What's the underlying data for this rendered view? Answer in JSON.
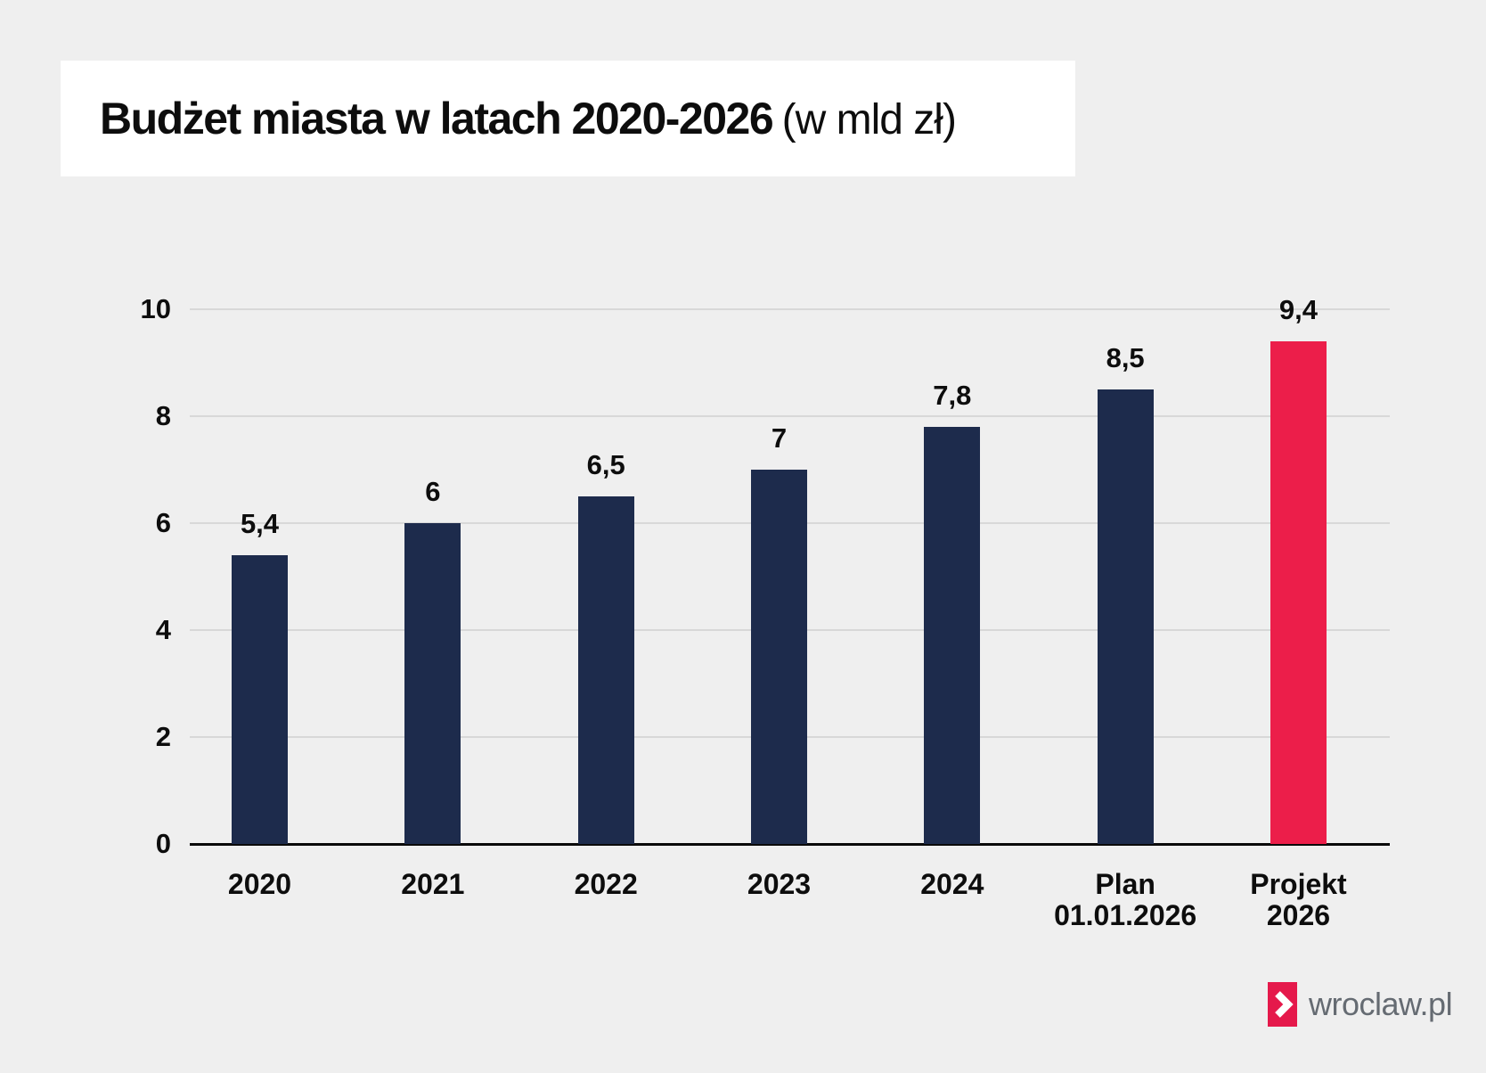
{
  "title": {
    "main": "Budżet miasta w latach 2020-2026",
    "unit": "(w mld zł)"
  },
  "chart_data": {
    "type": "bar",
    "title": "Budżet miasta w latach 2020-2026 (w mld zł)",
    "categories": [
      "2020",
      "2021",
      "2022",
      "2023",
      "2024",
      "Plan\n01.01.2026",
      "Projekt\n2026"
    ],
    "values": [
      5.4,
      6,
      6.5,
      7,
      7.8,
      8.5,
      9.4
    ],
    "value_labels": [
      "5,4",
      "6",
      "6,5",
      "7",
      "7,8",
      "8,5",
      "9,4"
    ],
    "xlabel": "",
    "ylabel": "",
    "ylim": [
      0,
      10
    ],
    "yticks": [
      0,
      2,
      4,
      6,
      8,
      10
    ],
    "grid": true,
    "legend": false,
    "bar_color": "#1d2b4c",
    "highlight_color": "#ec1e4a",
    "highlight_index": 6,
    "background_color": "#efefef"
  },
  "footer": {
    "logo_text": "wroclaw.pl",
    "logo_color": "#e5194b",
    "logo_text_color": "#656b72",
    "chevron_icon": "chevron-right"
  }
}
